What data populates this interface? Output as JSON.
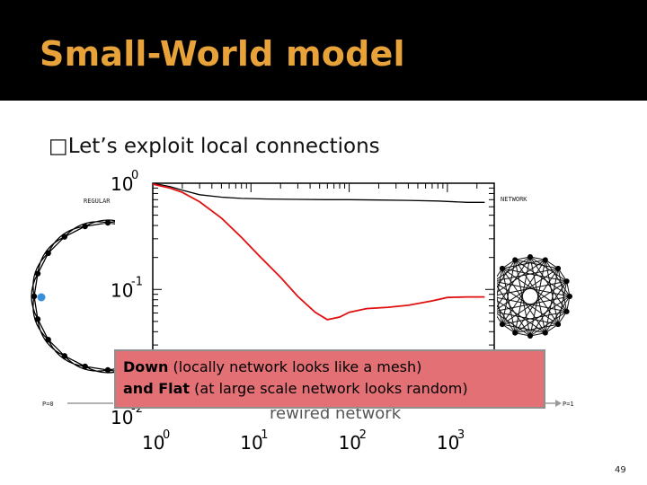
{
  "slide": {
    "title": "Small-World model",
    "bullet_glyph": "□",
    "bullet_text": "Let’s exploit local connections",
    "page_number": "49",
    "accent_title_color": "#e8a23a",
    "callout_color": "#e37075"
  },
  "figure": {
    "left_label": "REGULAR",
    "right_label": "NETWORK",
    "p_left": "P=0",
    "p_right": "P=1",
    "axis_partial_text": "rewired network"
  },
  "callout": {
    "line1_bold": "Down",
    "line1_rest": " (locally network looks like a mesh)",
    "line2_bold": "and Flat",
    "line2_rest": " (at large scale network looks random)"
  },
  "chart_data": {
    "type": "line",
    "x_scale": "log",
    "y_scale": "log",
    "xlim": [
      1,
      3000
    ],
    "ylim": [
      0.008,
      1
    ],
    "x_ticks": [
      1,
      10,
      100,
      1000
    ],
    "x_tick_labels": [
      "10",
      "10",
      "10",
      "10"
    ],
    "x_tick_exps": [
      "0",
      "1",
      "2",
      "3"
    ],
    "y_ticks": [
      1,
      0.1,
      0.01
    ],
    "y_tick_labels": [
      "10",
      "10",
      "10"
    ],
    "y_tick_exps": [
      "0",
      "-1",
      "-2"
    ],
    "series": [
      {
        "color": "#000000",
        "x": [
          1,
          1.5,
          2,
          3,
          5,
          8,
          15,
          30,
          60,
          100,
          200,
          400,
          800,
          1600,
          2400
        ],
        "y": [
          1.0,
          0.93,
          0.86,
          0.78,
          0.74,
          0.72,
          0.71,
          0.705,
          0.7,
          0.7,
          0.695,
          0.69,
          0.68,
          0.66,
          0.66
        ]
      },
      {
        "color": "#e01010",
        "x": [
          1,
          1.5,
          2,
          3,
          5,
          8,
          12,
          20,
          30,
          45,
          60,
          80,
          100,
          150,
          250,
          400,
          700,
          1000,
          1600,
          2400
        ],
        "y": [
          0.98,
          0.9,
          0.82,
          0.67,
          0.47,
          0.31,
          0.21,
          0.13,
          0.086,
          0.061,
          0.052,
          0.055,
          0.061,
          0.066,
          0.068,
          0.071,
          0.078,
          0.084,
          0.085,
          0.085
        ]
      }
    ]
  }
}
